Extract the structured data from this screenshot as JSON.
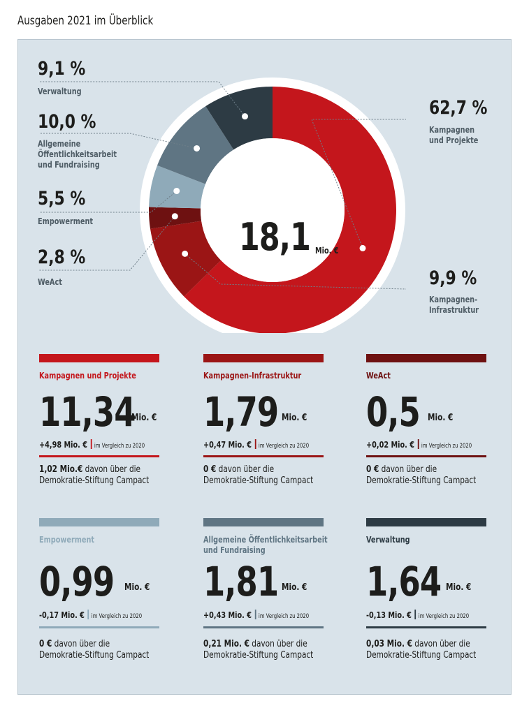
{
  "page_title": "Ausgaben 2021 im Überblick",
  "chart_data": {
    "type": "pie",
    "variant": "donut",
    "title": "Ausgaben 2021 im Überblick",
    "center_value": "18,1",
    "center_unit": "Mio. €",
    "slices": [
      {
        "label": "Kampagnen und Projekte",
        "callout_label": "Kampagnen\nund Projekte",
        "value": 62.7,
        "value_label": "62,7 %",
        "color": "#c4161c"
      },
      {
        "label": "Kampagnen-Infrastruktur",
        "callout_label": "Kampagnen-\nInfrastruktur",
        "value": 9.9,
        "value_label": "9,9 %",
        "color": "#9b1515"
      },
      {
        "label": "WeAct",
        "callout_label": "WeAct",
        "value": 2.8,
        "value_label": "2,8 %",
        "color": "#6e1111"
      },
      {
        "label": "Empowerment",
        "callout_label": "Empowerment",
        "value": 5.5,
        "value_label": "5,5 %",
        "color": "#8faab9"
      },
      {
        "label": "Allgemeine Öffentlichkeitsarbeit und Fundraising",
        "callout_label": "Allgemeine\nÖffentlichkeitsarbeit\nund Fundraising",
        "value": 10.0,
        "value_label": "10,0 %",
        "color": "#5f7583"
      },
      {
        "label": "Verwaltung",
        "callout_label": "Verwaltung",
        "value": 9.1,
        "value_label": "9,1 %",
        "color": "#2d3b44"
      }
    ]
  },
  "cards": [
    {
      "name": "Kampagnen und Projekte",
      "bar_color": "#c4161c",
      "name_color": "#c4161c",
      "value": "11,34",
      "unit": "Mio. €",
      "change": "+4,98 Mio. €",
      "change_note": "im Vergleich zu 2020",
      "note_amount": "1,02 Mio.€",
      "note_text": "davon über die\nDemokratie-Stiftung Campact"
    },
    {
      "name": "Kampagnen-Infrastruktur",
      "bar_color": "#9b1515",
      "name_color": "#9b1515",
      "value": "1,79",
      "unit": "Mio. €",
      "change": "+0,47 Mio. €",
      "change_note": "im Vergleich zu 2020",
      "note_amount": "0 €",
      "note_text": "davon über die\nDemokratie-Stiftung Campact"
    },
    {
      "name": "WeAct",
      "bar_color": "#6e1111",
      "name_color": "#6e1111",
      "value": "0,5",
      "unit": "Mio. €",
      "change": "+0,02 Mio. €",
      "change_note": "im Vergleich zu 2020",
      "note_amount": "0 €",
      "note_text": "davon über die\nDemokratie-Stiftung Campact"
    },
    {
      "name": "Empowerment",
      "bar_color": "#8faab9",
      "name_color": "#8faab9",
      "value": "0,99",
      "unit": "Mio. €",
      "change": "-0,17 Mio. €",
      "change_note": "im Vergleich zu 2020",
      "note_amount": "0 €",
      "note_text": "davon über die\nDemokratie-Stiftung Campact"
    },
    {
      "name": "Allgemeine Öffentlichkeitsarbeit\nund Fundraising",
      "bar_color": "#5f7583",
      "name_color": "#5f7583",
      "value": "1,81",
      "unit": "Mio. €",
      "change": "+0,43 Mio. €",
      "change_note": "im Vergleich zu 2020",
      "note_amount": "0,21 Mio. €",
      "note_text": "davon über die\nDemokratie-Stiftung Campact"
    },
    {
      "name": "Verwaltung",
      "bar_color": "#2d3b44",
      "name_color": "#2d3b44",
      "value": "1,64",
      "unit": "Mio. €",
      "change": "-0,13 Mio. €",
      "change_note": "im Vergleich zu 2020",
      "note_amount": "0,03 Mio. €",
      "note_text": "davon über die\nDemokratie-Stiftung Campact"
    }
  ]
}
